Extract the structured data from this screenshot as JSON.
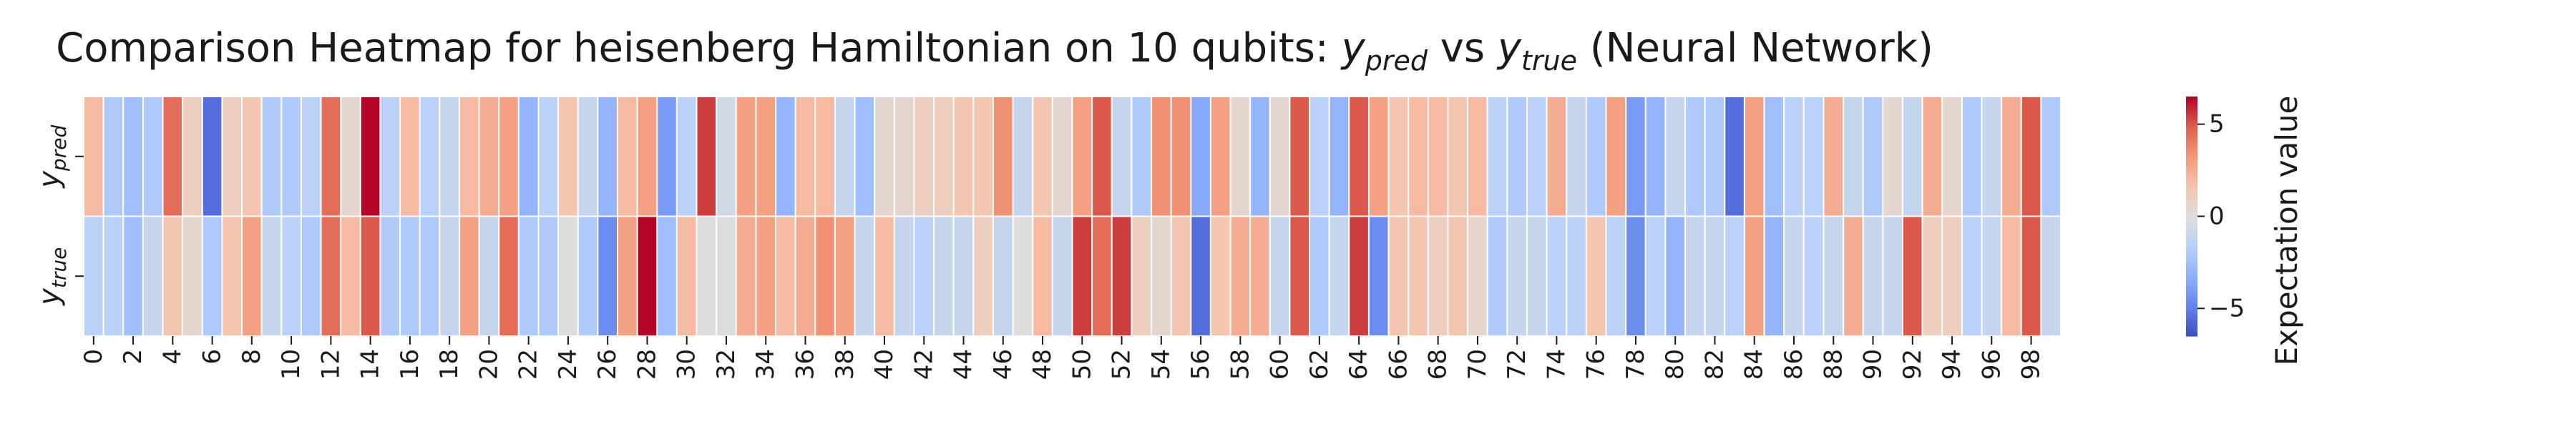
{
  "chart_data": {
    "type": "heatmap",
    "title_parts": {
      "prefix": "Comparison Heatmap for heisenberg Hamiltonian on 10 qubits: ",
      "y1_base": "y",
      "y1_sub": "pred",
      "mid": " vs ",
      "y2_base": "y",
      "y2_sub": "true",
      "suffix": " (Neural Network)"
    },
    "rows": [
      {
        "base": "y",
        "sub": "pred"
      },
      {
        "base": "y",
        "sub": "true"
      }
    ],
    "x_tick_labels": [
      "0",
      "2",
      "4",
      "6",
      "8",
      "10",
      "12",
      "14",
      "16",
      "18",
      "20",
      "22",
      "24",
      "26",
      "28",
      "30",
      "32",
      "34",
      "36",
      "38",
      "40",
      "42",
      "44",
      "46",
      "48",
      "50",
      "52",
      "54",
      "56",
      "58",
      "60",
      "62",
      "64",
      "66",
      "68",
      "70",
      "72",
      "74",
      "76",
      "78",
      "80",
      "82",
      "84",
      "86",
      "88",
      "90",
      "92",
      "94",
      "96",
      "98"
    ],
    "columns": 100,
    "values": [
      [
        2,
        -2,
        -2.5,
        -2,
        4.5,
        1,
        -5.5,
        1,
        1.5,
        -2,
        -2,
        -1.5,
        4.5,
        0.5,
        6.5,
        -1.5,
        2,
        -1.5,
        -1,
        2,
        2.5,
        3,
        -3,
        -1.5,
        1.5,
        -1,
        -3,
        2,
        3,
        -4,
        -1.5,
        5.5,
        -0.5,
        3,
        3,
        -3,
        2,
        2,
        -1,
        -2.5,
        0.5,
        0.5,
        1,
        1,
        1.5,
        1.5,
        3.5,
        -1,
        1.5,
        0.5,
        3,
        5,
        -1,
        -2,
        3.5,
        3.5,
        -3.5,
        3,
        0.5,
        -3,
        0.5,
        5,
        -1.5,
        -3,
        5,
        3,
        1.5,
        2,
        2,
        1.5,
        2,
        -1.5,
        -2,
        -1.5,
        2.5,
        -1,
        -2,
        3,
        -4,
        -3,
        -1,
        -2,
        -2,
        -5.5,
        3,
        -2.5,
        -1.5,
        -1.5,
        2.5,
        -1,
        -2,
        0.5,
        -1,
        2.5,
        0.5,
        -2,
        -1,
        2.5,
        5,
        -2
      ],
      [
        -1.5,
        -1.5,
        -2.5,
        -1,
        1.5,
        0.5,
        -2,
        1.5,
        3,
        -1,
        -1.5,
        -2,
        4.5,
        2,
        5,
        -2,
        -2,
        -2,
        -1,
        3,
        -1,
        4.5,
        -2,
        -2,
        0,
        -2,
        -4.5,
        3,
        6.5,
        -2.5,
        2,
        0,
        0,
        2.5,
        3,
        2,
        2.5,
        3.5,
        3,
        -1,
        2,
        -1,
        -1.5,
        -1,
        -1,
        1,
        -1,
        0,
        2,
        -1,
        5.5,
        4.5,
        5.5,
        1,
        0.5,
        1.5,
        -5.5,
        1.5,
        2.5,
        2.5,
        -1,
        5,
        -2,
        -1,
        5.5,
        -4.5,
        1.5,
        1.5,
        1,
        1.5,
        0.5,
        -2,
        -1,
        -1,
        -1.5,
        -1.5,
        1.5,
        -1.5,
        -4.5,
        -1.5,
        -3,
        -1,
        -1,
        -1.5,
        3,
        -3,
        -1,
        -1.5,
        -1,
        2.5,
        -1,
        -1,
        5,
        1,
        1,
        -1.5,
        -1,
        2,
        5,
        -1
      ]
    ],
    "vmin": -6.5,
    "vmax": 6.5,
    "colormap": "coolwarm",
    "colorbar": {
      "label": "Expectation value",
      "ticks": [
        5,
        0,
        -5
      ],
      "tick_labels": [
        "5",
        "0",
        "−5"
      ]
    }
  }
}
